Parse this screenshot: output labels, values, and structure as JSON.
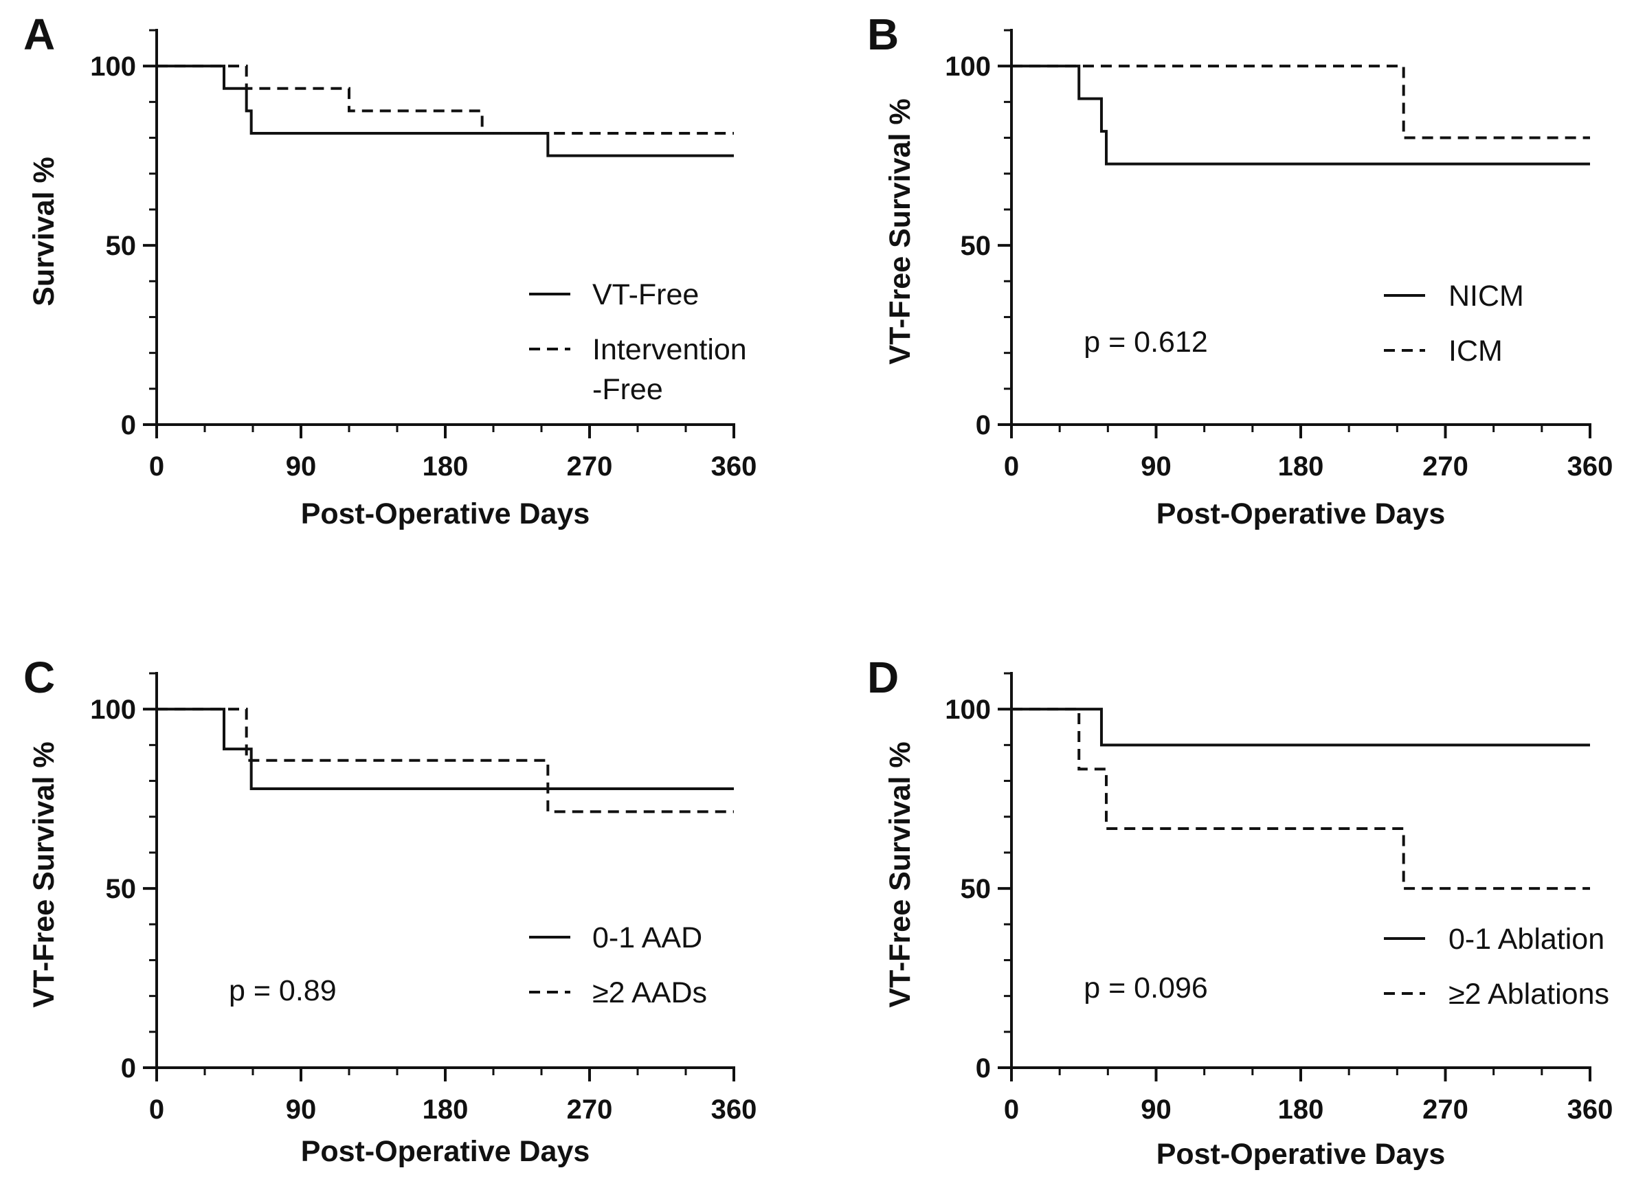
{
  "figure": {
    "type": "kaplan-meier-grid",
    "colors": {
      "line": "#111111",
      "background": "#ffffff"
    }
  },
  "chart_data": [
    {
      "type": "line",
      "subtype": "step",
      "panel": "A",
      "xlabel": "Post-Operative Days",
      "ylabel": "Survival %",
      "xlim": [
        0,
        360
      ],
      "ylim": [
        0,
        110
      ],
      "xticks": [
        0,
        90,
        180,
        270,
        360
      ],
      "yticks": [
        0,
        50,
        100
      ],
      "legend_position": "right-middle",
      "series": [
        {
          "name": "VT-Free",
          "name_lines": [
            "VT-Free"
          ],
          "style": "solid",
          "x": [
            0,
            42,
            56,
            59,
            244,
            360
          ],
          "y": [
            100,
            93.75,
            87.5,
            81.25,
            75,
            75
          ]
        },
        {
          "name": "Intervention-Free",
          "name_lines": [
            "Intervention",
            "-Free"
          ],
          "style": "dashed",
          "x": [
            0,
            56,
            120,
            203,
            360
          ],
          "y": [
            100,
            93.75,
            87.5,
            81.25,
            81.25
          ]
        }
      ]
    },
    {
      "type": "line",
      "subtype": "step",
      "panel": "B",
      "xlabel": "Post-Operative Days",
      "ylabel": "VT-Free Survival %",
      "xlim": [
        0,
        360
      ],
      "ylim": [
        0,
        110
      ],
      "xticks": [
        0,
        90,
        180,
        270,
        360
      ],
      "yticks": [
        0,
        50,
        100
      ],
      "legend_position": "right-middle",
      "p_value": {
        "label": "p = 0.612",
        "x": 45,
        "y": 21
      },
      "series": [
        {
          "name": "NICM",
          "name_lines": [
            "NICM"
          ],
          "style": "solid",
          "x": [
            0,
            42,
            56,
            59,
            360
          ],
          "y": [
            100,
            90.9,
            81.8,
            72.7,
            72.7
          ]
        },
        {
          "name": "ICM",
          "name_lines": [
            "ICM"
          ],
          "style": "dashed",
          "x": [
            0,
            244,
            360
          ],
          "y": [
            100,
            80,
            80
          ]
        }
      ]
    },
    {
      "type": "line",
      "subtype": "step",
      "panel": "C",
      "xlabel": "Post-Operative Days",
      "ylabel": "VT-Free Survival %",
      "xlim": [
        0,
        360
      ],
      "ylim": [
        0,
        110
      ],
      "xticks": [
        0,
        90,
        180,
        270,
        360
      ],
      "yticks": [
        0,
        50,
        100
      ],
      "legend_position": "right-middle",
      "p_value": {
        "label": "p = 0.89",
        "x": 45,
        "y": 21
      },
      "series": [
        {
          "name": "0-1 AAD",
          "name_lines": [
            "0-1 AAD"
          ],
          "style": "solid",
          "x": [
            0,
            42,
            59,
            360
          ],
          "y": [
            100,
            88.9,
            77.8,
            77.8
          ]
        },
        {
          "name": "≥2 AADs",
          "name_lines": [
            "≥2 AADs"
          ],
          "style": "dashed",
          "x": [
            0,
            56,
            244,
            360
          ],
          "y": [
            100,
            85.7,
            71.4,
            71.4
          ]
        }
      ]
    },
    {
      "type": "line",
      "subtype": "step",
      "panel": "D",
      "xlabel": "Post-Operative Days",
      "ylabel": "VT-Free Survival %",
      "xlim": [
        0,
        360
      ],
      "ylim": [
        0,
        110
      ],
      "xticks": [
        0,
        90,
        180,
        270,
        360
      ],
      "yticks": [
        0,
        50,
        100
      ],
      "legend_position": "right-middle",
      "p_value": {
        "label": "p = 0.096",
        "x": 45,
        "y": 21
      },
      "series": [
        {
          "name": "0-1 Ablation",
          "name_lines": [
            "0-1 Ablation"
          ],
          "style": "solid",
          "x": [
            0,
            56,
            360
          ],
          "y": [
            100,
            90,
            90
          ]
        },
        {
          "name": "≥2 Ablations",
          "name_lines": [
            "≥2 Ablations"
          ],
          "style": "dashed",
          "x": [
            0,
            42,
            59,
            244,
            360
          ],
          "y": [
            100,
            83.3,
            66.7,
            50,
            50
          ]
        }
      ]
    }
  ]
}
